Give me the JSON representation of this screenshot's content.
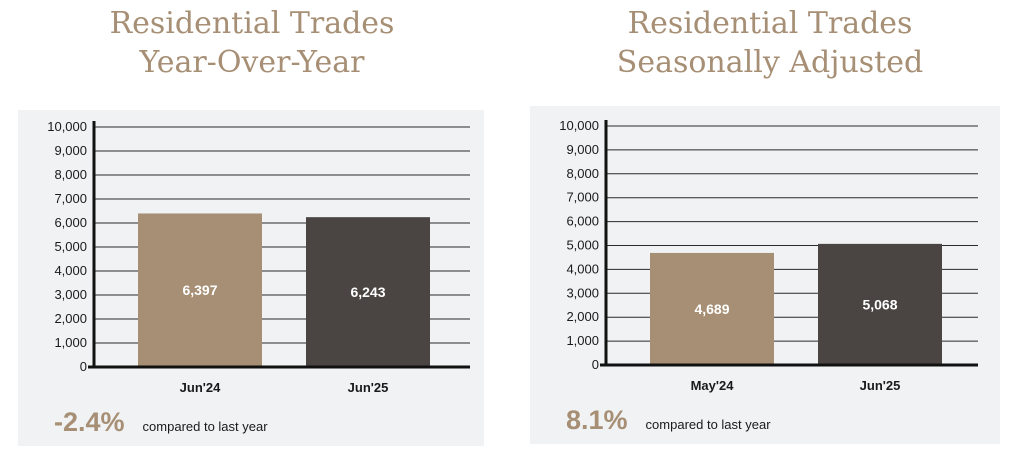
{
  "colors": {
    "accent": "#a68f74",
    "dark_bar": "#4a4542",
    "card_bg": "#f0f2f3"
  },
  "chart_data": [
    {
      "type": "bar",
      "title": "Residential Trades Year-Over-Year",
      "title_lines": [
        "Residential Trades",
        "Year-Over-Year"
      ],
      "categories": [
        "Jun'24",
        "Jun'25"
      ],
      "values": [
        6397,
        6243
      ],
      "data_labels": [
        "6,397",
        "6,243"
      ],
      "bar_colors": [
        "#a68f74",
        "#4a4542"
      ],
      "yticks": [
        "0",
        "1,000",
        "2,000",
        "3,000",
        "4,000",
        "5,000",
        "6,000",
        "7,000",
        "8,000",
        "9,000",
        "10,000"
      ],
      "ylim": [
        0,
        10000
      ],
      "grid": true,
      "change": "-2.4%",
      "change_caption": "compared to last year"
    },
    {
      "type": "bar",
      "title": "Residential Trades Seasonally Adjusted",
      "title_lines": [
        "Residential Trades",
        "Seasonally Adjusted"
      ],
      "categories": [
        "May'24",
        "Jun'25"
      ],
      "values": [
        4689,
        5068
      ],
      "data_labels": [
        "4,689",
        "5,068"
      ],
      "bar_colors": [
        "#a68f74",
        "#4a4542"
      ],
      "yticks": [
        "0",
        "1,000",
        "2,000",
        "3,000",
        "4,000",
        "5,000",
        "6,000",
        "7,000",
        "8,000",
        "9,000",
        "10,000"
      ],
      "ylim": [
        0,
        10000
      ],
      "grid": true,
      "change": "8.1%",
      "change_caption": "compared to last year"
    }
  ]
}
